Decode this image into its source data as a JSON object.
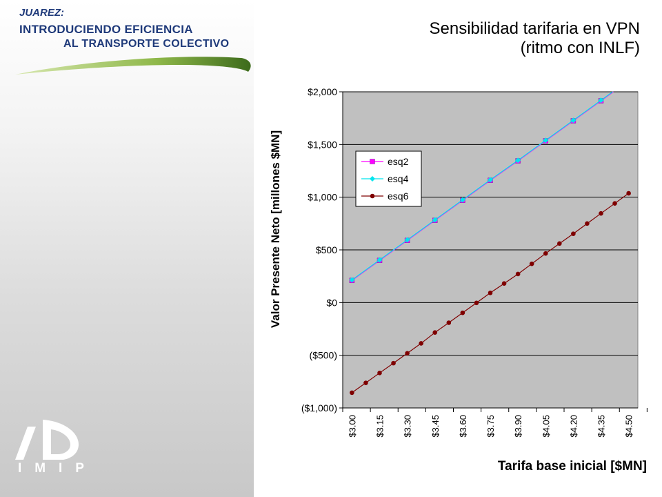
{
  "header": {
    "line1": "JUAREZ:",
    "line2": "INTRODUCIENDO EFICIENCIA",
    "line3": "AL TRANSPORTE COLECTIVO"
  },
  "logo": {
    "letters": [
      "I",
      "M",
      "I",
      "P"
    ]
  },
  "colors": {
    "header_text": "#1f3a7a",
    "plot_bg": "#c0c0c0"
  },
  "chart_data": {
    "type": "line",
    "title": "Sensibilidad tarifaria en VPN",
    "subtitle": "(ritmo con INLF)",
    "xlabel": "Tarifa base inicial [$MN]",
    "ylabel": "Valor Presente Neto [millones $MN]",
    "ylim": [
      -1000,
      2000
    ],
    "grid": true,
    "legend_position": "upper-left-inside",
    "x": [
      3.0,
      3.075,
      3.15,
      3.225,
      3.3,
      3.375,
      3.45,
      3.525,
      3.6,
      3.675,
      3.75,
      3.825,
      3.9,
      3.975,
      4.05,
      4.125,
      4.2,
      4.275,
      4.35,
      4.425,
      4.5
    ],
    "x_tick_labels": [
      "$3.00",
      "$3.15",
      "$3.30",
      "$3.45",
      "$3.60",
      "$3.75",
      "$3.90",
      "$4.05",
      "$4.20",
      "$4.35",
      "$4.50"
    ],
    "x_tick_values": [
      3.0,
      3.15,
      3.3,
      3.45,
      3.6,
      3.75,
      3.9,
      4.05,
      4.2,
      4.35,
      4.5
    ],
    "y_tick_labels": [
      "$2,000",
      "$1,500",
      "$1,000",
      "$500",
      "$0",
      "($500)",
      "($1,000)"
    ],
    "y_tick_values": [
      2000,
      1500,
      1000,
      500,
      0,
      -500,
      -1000
    ],
    "series": [
      {
        "name": "esq2",
        "color": "#ff00ff",
        "marker": "square",
        "x": [
          3.0,
          3.15,
          3.3,
          3.45,
          3.6,
          3.75,
          3.9,
          4.05,
          4.2,
          4.35
        ],
        "values": [
          210,
          400,
          590,
          780,
          970,
          1160,
          1345,
          1535,
          1725,
          1915
        ]
      },
      {
        "name": "esq4",
        "color": "#00e5ee",
        "marker": "diamond",
        "x": [
          3.0,
          3.15,
          3.3,
          3.45,
          3.6,
          3.75,
          3.9,
          4.05,
          4.2,
          4.35
        ],
        "values": [
          215,
          405,
          595,
          785,
          975,
          1165,
          1350,
          1540,
          1730,
          1920
        ]
      },
      {
        "name": "esq6",
        "color": "#7f0000",
        "marker": "circle",
        "x": [
          3.0,
          3.075,
          3.15,
          3.225,
          3.3,
          3.375,
          3.45,
          3.525,
          3.6,
          3.675,
          3.75,
          3.825,
          3.9,
          3.975,
          4.05,
          4.125,
          4.2,
          4.275,
          4.35,
          4.425,
          4.5
        ],
        "values": [
          -855,
          -762,
          -668,
          -575,
          -481,
          -387,
          -284,
          -191,
          -97,
          -3,
          92,
          181,
          271,
          368,
          466,
          560,
          653,
          750,
          846,
          941,
          1037
        ]
      }
    ]
  }
}
